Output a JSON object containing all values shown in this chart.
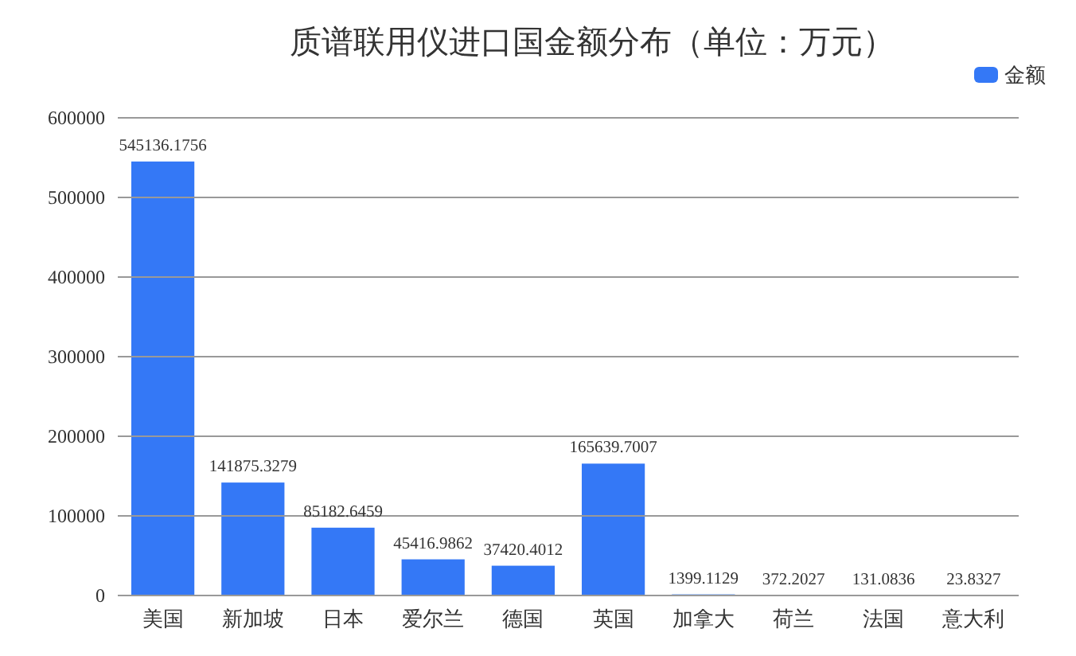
{
  "chart_data": {
    "type": "bar",
    "title": "质谱联用仪进口国金额分布（单位：万元）",
    "categories": [
      "美国",
      "新加坡",
      "日本",
      "爱尔兰",
      "德国",
      "英国",
      "加拿大",
      "荷兰",
      "法国",
      "意大利"
    ],
    "series": [
      {
        "name": "金额",
        "color": "#3478f6",
        "values": [
          545136.1756,
          141875.3279,
          85182.6459,
          45416.9862,
          37420.4012,
          165639.7007,
          1399.1129,
          372.2027,
          131.0836,
          23.8327
        ]
      }
    ],
    "ylim": [
      0,
      600000
    ],
    "yticks": [
      0,
      100000,
      200000,
      300000,
      400000,
      500000,
      600000
    ],
    "grid": "y",
    "legend": "top right",
    "data_labels": true
  }
}
